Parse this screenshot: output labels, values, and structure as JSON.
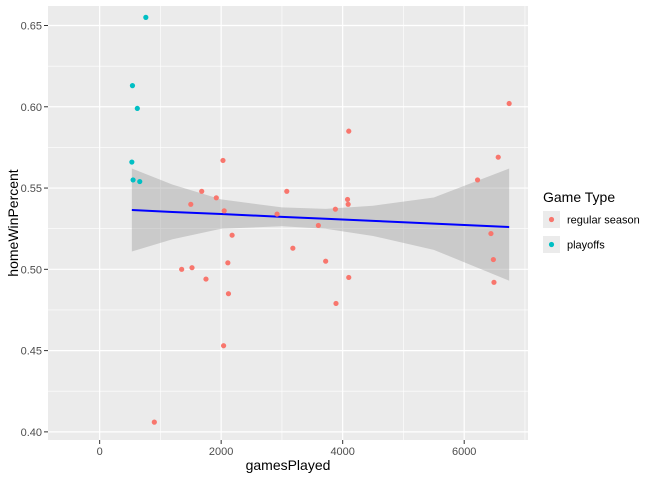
{
  "chart_data": {
    "type": "scatter",
    "xlabel": "gamesPlayed",
    "ylabel": "homeWinPercent",
    "xlim": [
      -850,
      7050
    ],
    "ylim": [
      0.395,
      0.662
    ],
    "x_ticks": [
      0,
      2000,
      4000,
      6000
    ],
    "x_tick_labels": [
      "0",
      "2000",
      "4000",
      "6000"
    ],
    "y_ticks": [
      0.4,
      0.45,
      0.5,
      0.55,
      0.6,
      0.65
    ],
    "y_tick_labels": [
      "0.40",
      "0.45",
      "0.50",
      "0.55",
      "0.60",
      "0.65"
    ],
    "grid": true,
    "legend": {
      "title": "Game Type",
      "position": "right"
    },
    "series": [
      {
        "name": "regular season",
        "color": "#F8766D",
        "points": [
          [
            900,
            0.406
          ],
          [
            1350,
            0.5
          ],
          [
            1500,
            0.54
          ],
          [
            1520,
            0.501
          ],
          [
            1680,
            0.548
          ],
          [
            1750,
            0.494
          ],
          [
            1920,
            0.544
          ],
          [
            2030,
            0.567
          ],
          [
            2040,
            0.453
          ],
          [
            2050,
            0.536
          ],
          [
            2110,
            0.504
          ],
          [
            2120,
            0.485
          ],
          [
            2180,
            0.521
          ],
          [
            2920,
            0.534
          ],
          [
            3080,
            0.548
          ],
          [
            3180,
            0.513
          ],
          [
            3600,
            0.527
          ],
          [
            3720,
            0.505
          ],
          [
            3880,
            0.537
          ],
          [
            3890,
            0.479
          ],
          [
            4080,
            0.543
          ],
          [
            4090,
            0.54
          ],
          [
            4100,
            0.585
          ],
          [
            4100,
            0.495
          ],
          [
            6220,
            0.555
          ],
          [
            6440,
            0.522
          ],
          [
            6480,
            0.506
          ],
          [
            6490,
            0.492
          ],
          [
            6560,
            0.569
          ],
          [
            6740,
            0.602
          ]
        ]
      },
      {
        "name": "playoffs",
        "color": "#00BFC4",
        "points": [
          [
            530,
            0.566
          ],
          [
            540,
            0.613
          ],
          [
            550,
            0.555
          ],
          [
            620,
            0.599
          ],
          [
            660,
            0.554
          ],
          [
            760,
            0.655
          ]
        ]
      }
    ],
    "trend": {
      "method": "lm",
      "color": "#0000FF",
      "band_color": "#999999",
      "x": [
        530,
        1200,
        2000,
        3000,
        3720,
        4500,
        5500,
        6740
      ],
      "y": [
        0.5365,
        0.5353,
        0.534,
        0.5323,
        0.5311,
        0.5298,
        0.5281,
        0.526
      ],
      "lower": [
        0.511,
        0.5185,
        0.525,
        0.5265,
        0.525,
        0.5205,
        0.512,
        0.493
      ],
      "upper": [
        0.562,
        0.5521,
        0.543,
        0.5381,
        0.5372,
        0.5391,
        0.5442,
        0.562
      ]
    }
  }
}
